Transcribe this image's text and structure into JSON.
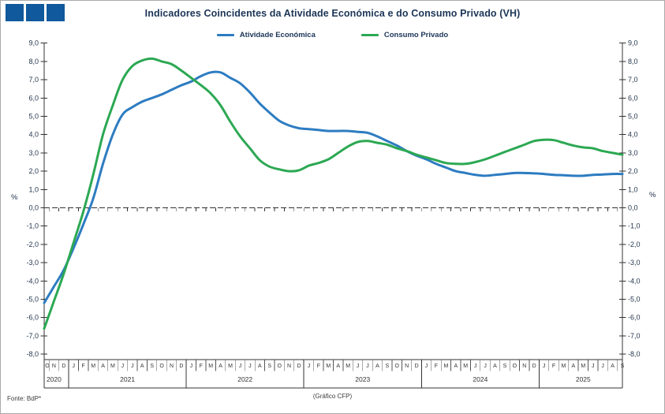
{
  "header": {
    "title": "Indicadores Coincidentes da Atividade Económica e do Consumo Privado (VH)",
    "logo_color": "#10599c"
  },
  "legend": [
    {
      "label": "Atividade Económica",
      "color": "#2d7cc1"
    },
    {
      "label": "Consumo Privado",
      "color": "#2ca853"
    }
  ],
  "footer": {
    "source": "Fonte: BdP*",
    "credit": "(Gráfico CFP)"
  },
  "chart_data": {
    "type": "line",
    "title": "Indicadores Coincidentes da Atividade Económica e do Consumo Privado (VH)",
    "ylabel_left": "%",
    "ylabel_right": "%",
    "ylim": [
      -8,
      9
    ],
    "ytick_step": 1,
    "ytick_labels": [
      "9,0",
      "8,0",
      "7,0",
      "6,0",
      "5,0",
      "4,0",
      "3,0",
      "2,0",
      "1,0",
      "0,0",
      "-1,0",
      "-2,0",
      "-3,0",
      "-4,0",
      "-5,0",
      "-6,0",
      "-7,0",
      "-8,0"
    ],
    "zero_line": true,
    "grid": false,
    "legend_position": "top-center",
    "x_months": [
      "O",
      "N",
      "D",
      "J",
      "F",
      "M",
      "A",
      "M",
      "J",
      "J",
      "A",
      "S",
      "O",
      "N",
      "D",
      "J",
      "F",
      "M",
      "A",
      "M",
      "J",
      "J",
      "A",
      "S",
      "O",
      "N",
      "D",
      "J",
      "F",
      "M",
      "A",
      "M",
      "J",
      "J",
      "A",
      "S",
      "O",
      "N",
      "D",
      "J",
      "F",
      "M",
      "A",
      "M",
      "J",
      "J",
      "A",
      "S",
      "O",
      "N",
      "D",
      "J",
      "F",
      "M",
      "A",
      "M",
      "J",
      "J",
      "A",
      "S"
    ],
    "x_years": [
      {
        "label": "2020",
        "months": 3
      },
      {
        "label": "2021",
        "months": 12
      },
      {
        "label": "2022",
        "months": 12
      },
      {
        "label": "2023",
        "months": 12
      },
      {
        "label": "2024",
        "months": 12
      },
      {
        "label": "2025",
        "months": 9
      }
    ],
    "x_range_note": "monthly, Oct 2020 - Sep 2025",
    "series": [
      {
        "name": "Atividade Económica",
        "color": "#2d7cc1",
        "values": [
          -5.2,
          -4.3,
          -3.4,
          -2.2,
          -0.9,
          0.5,
          2.4,
          4.0,
          5.1,
          5.5,
          5.8,
          6.0,
          6.2,
          6.45,
          6.7,
          6.9,
          7.2,
          7.4,
          7.4,
          7.1,
          6.8,
          6.3,
          5.7,
          5.2,
          4.75,
          4.5,
          4.35,
          4.3,
          4.25,
          4.2,
          4.2,
          4.2,
          4.15,
          4.1,
          3.9,
          3.65,
          3.4,
          3.1,
          2.85,
          2.65,
          2.4,
          2.2,
          2.0,
          1.9,
          1.8,
          1.75,
          1.8,
          1.85,
          1.9,
          1.9,
          1.88,
          1.85,
          1.8,
          1.78,
          1.75,
          1.75,
          1.8,
          1.82,
          1.85,
          1.85
        ]
      },
      {
        "name": "Consumo Privado",
        "color": "#2ca853",
        "values": [
          -6.6,
          -5.1,
          -3.6,
          -1.9,
          -0.2,
          1.8,
          4.0,
          5.6,
          7.0,
          7.75,
          8.05,
          8.15,
          8.0,
          7.85,
          7.5,
          7.1,
          6.7,
          6.25,
          5.6,
          4.7,
          3.9,
          3.25,
          2.6,
          2.25,
          2.1,
          2.0,
          2.05,
          2.3,
          2.45,
          2.65,
          3.0,
          3.35,
          3.6,
          3.65,
          3.55,
          3.45,
          3.25,
          3.1,
          2.9,
          2.75,
          2.6,
          2.45,
          2.4,
          2.4,
          2.5,
          2.65,
          2.85,
          3.05,
          3.25,
          3.45,
          3.65,
          3.72,
          3.7,
          3.55,
          3.4,
          3.3,
          3.25,
          3.1,
          3.0,
          2.9
        ]
      }
    ]
  }
}
